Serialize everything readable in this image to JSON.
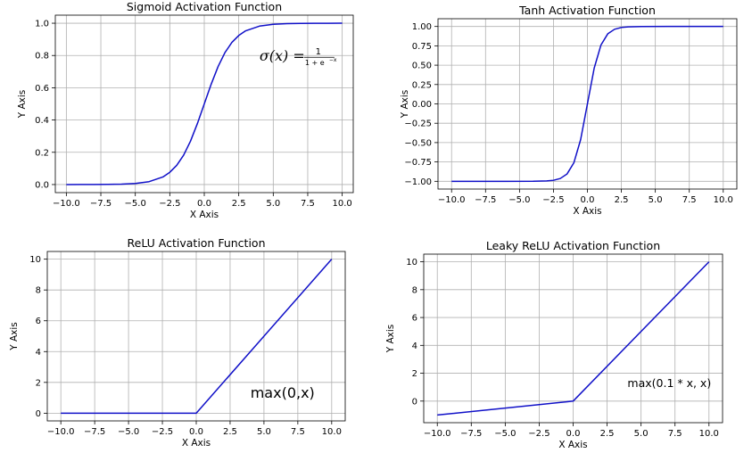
{
  "chart_data": [
    {
      "type": "line",
      "title": "Sigmoid Activation Function",
      "xlabel": "X Axis",
      "ylabel": "Y Axis",
      "xlim": [
        -10.8,
        10.8
      ],
      "ylim": [
        -0.05,
        1.05
      ],
      "xticks": [
        -10.0,
        -7.5,
        -5.0,
        -2.5,
        0.0,
        2.5,
        5.0,
        7.5,
        10.0
      ],
      "xtick_labels": [
        "−10.0",
        "−7.5",
        "−5.0",
        "−2.5",
        "0.0",
        "2.5",
        "5.0",
        "7.5",
        "10.0"
      ],
      "yticks": [
        0.0,
        0.2,
        0.4,
        0.6,
        0.8,
        1.0
      ],
      "ytick_labels": [
        "0.0",
        "0.2",
        "0.4",
        "0.6",
        "0.8",
        "1.0"
      ],
      "grid": true,
      "color": "#1010c8",
      "annotation": {
        "text": "σ(x) = 1/(1 + e^−x)",
        "lead": "σ(x) =",
        "numerator": "1",
        "denominator": "1 + e",
        "exponent": "−x",
        "x": 4.0,
        "y": 0.8
      },
      "series": [
        {
          "x": [
            -10,
            -9,
            -8,
            -7,
            -6,
            -5,
            -4,
            -3,
            -2.5,
            -2,
            -1.5,
            -1,
            -0.5,
            0,
            0.5,
            1,
            1.5,
            2,
            2.5,
            3,
            4,
            5,
            6,
            7,
            8,
            9,
            10
          ],
          "y": [
            5e-05,
            0.00012,
            0.00034,
            0.00091,
            0.0025,
            0.0067,
            0.018,
            0.047,
            0.076,
            0.119,
            0.182,
            0.269,
            0.378,
            0.5,
            0.622,
            0.731,
            0.818,
            0.881,
            0.924,
            0.953,
            0.982,
            0.9933,
            0.9975,
            0.9991,
            0.99966,
            0.99988,
            0.99995
          ]
        }
      ]
    },
    {
      "type": "line",
      "title": "Tanh Activation Function",
      "xlabel": "X Axis",
      "ylabel": "Y Axis",
      "xlim": [
        -11.0,
        11.0
      ],
      "ylim": [
        -1.1,
        1.1
      ],
      "xticks": [
        -10.0,
        -7.5,
        -5.0,
        -2.5,
        0.0,
        2.5,
        5.0,
        7.5,
        10.0
      ],
      "xtick_labels": [
        "−10.0",
        "−7.5",
        "−5.0",
        "−2.5",
        "0.0",
        "2.5",
        "5.0",
        "7.5",
        "10.0"
      ],
      "yticks": [
        -1.0,
        -0.75,
        -0.5,
        -0.25,
        0.0,
        0.25,
        0.5,
        0.75,
        1.0
      ],
      "ytick_labels": [
        "−1.00",
        "−0.75",
        "−0.50",
        "−0.25",
        "0.00",
        "0.25",
        "0.50",
        "0.75",
        "1.00"
      ],
      "grid": true,
      "color": "#1010c8",
      "series": [
        {
          "x": [
            -10,
            -6,
            -4,
            -3,
            -2.5,
            -2,
            -1.5,
            -1,
            -0.5,
            0,
            0.5,
            1,
            1.5,
            2,
            2.5,
            3,
            4,
            6,
            10
          ],
          "y": [
            -1.0,
            -0.99998,
            -0.9993,
            -0.995,
            -0.987,
            -0.964,
            -0.905,
            -0.762,
            -0.462,
            0.0,
            0.462,
            0.762,
            0.905,
            0.964,
            0.987,
            0.995,
            0.9993,
            0.99998,
            1.0
          ]
        }
      ]
    },
    {
      "type": "line",
      "title": "ReLU Activation Function",
      "xlabel": "X Axis",
      "ylabel": "Y Axis",
      "xlim": [
        -11.0,
        11.0
      ],
      "ylim": [
        -0.5,
        10.5
      ],
      "xticks": [
        -10.0,
        -7.5,
        -5.0,
        -2.5,
        0.0,
        2.5,
        5.0,
        7.5,
        10.0
      ],
      "xtick_labels": [
        "−10.0",
        "−7.5",
        "−5.0",
        "−2.5",
        "0.0",
        "2.5",
        "5.0",
        "7.5",
        "10.0"
      ],
      "yticks": [
        0,
        2,
        4,
        6,
        8,
        10
      ],
      "ytick_labels": [
        "0",
        "2",
        "4",
        "6",
        "8",
        "10"
      ],
      "grid": true,
      "color": "#1010c8",
      "annotation": {
        "text": "max(0,x)",
        "x": 4.0,
        "y": 1.0
      },
      "series": [
        {
          "x": [
            -10,
            0,
            10
          ],
          "y": [
            0,
            0,
            10
          ]
        }
      ]
    },
    {
      "type": "line",
      "title": "Leaky ReLU Activation Function",
      "xlabel": "X Axis",
      "ylabel": "Y Axis",
      "xlim": [
        -11.0,
        11.0
      ],
      "ylim": [
        -1.55,
        10.55
      ],
      "xticks": [
        -10.0,
        -7.5,
        -5.0,
        -2.5,
        0.0,
        2.5,
        5.0,
        7.5,
        10.0
      ],
      "xtick_labels": [
        "−10.0",
        "−7.5",
        "−5.0",
        "−2.5",
        "0.0",
        "2.5",
        "5.0",
        "7.5",
        "10.0"
      ],
      "yticks": [
        0,
        2,
        4,
        6,
        8,
        10
      ],
      "ytick_labels": [
        "0",
        "2",
        "4",
        "6",
        "8",
        "10"
      ],
      "grid": true,
      "color": "#1010c8",
      "annotation": {
        "text": "max(0.1 * x, x)",
        "x": 4.0,
        "y": 1.0
      },
      "series": [
        {
          "x": [
            -10,
            0,
            10
          ],
          "y": [
            -1,
            0,
            10
          ]
        }
      ]
    }
  ]
}
